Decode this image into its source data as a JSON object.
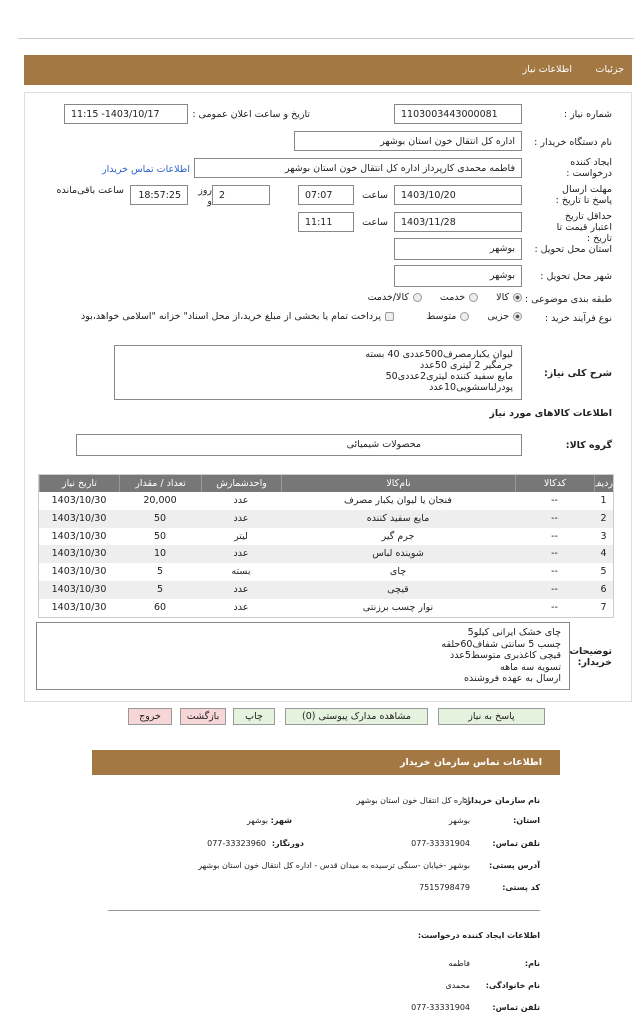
{
  "header": {
    "tabs": [
      "جزئیات",
      "اطلاعات نیاز"
    ]
  },
  "need": {
    "number_label": "شماره نیاز :",
    "number": "1103003443000081",
    "announce_label": "تاریخ و ساعت اعلان عمومی :",
    "announce": "1403/10/17- 11:15",
    "buyer_label": "نام دستگاه خریدار :",
    "buyer": "اداره کل انتقال خون استان بوشهر",
    "creator_label": "ایجاد کننده درخواست :",
    "creator": "فاطمه محمدی کارپرداز اداره کل انتقال خون استان بوشهر",
    "contact_link": "اطلاعات تماس خریدار",
    "deadline_label": "مهلت ارسال پاسخ تا تاریخ :",
    "deadline_date": "1403/10/20",
    "time_label": "ساعت",
    "deadline_time": "07:07",
    "days": "2",
    "days_label": "روز و",
    "remaining": "18:57:25",
    "remaining_label": "ساعت باقی‌مانده",
    "validity_label": "حداقل تاریخ اعتبار قیمت تا تاریخ :",
    "validity_date": "1403/11/28",
    "validity_time": "11:11",
    "province_label": "استان محل تحویل :",
    "province": "بوشهر",
    "city_label": "شهر محل تحویل :",
    "city": "بوشهر",
    "category_label": "طبقه بندی موضوعی :",
    "category_options": [
      "کالا",
      "خدمت",
      "کالا/خدمت"
    ],
    "category_selected": 0,
    "process_label": "نوع فرآیند خرید :",
    "process_options": [
      "جزیی",
      "متوسط"
    ],
    "process_selected": 0,
    "treasury_note": "پرداخت تمام یا بخشی از مبلغ خرید،از محل اسناد\" خزانه \"اسلامی خواهد،بود"
  },
  "description": {
    "label": "شرح کلی نیاز:",
    "lines": [
      "لیوان  یکبارمصرف500عددی 40 بسته",
      "جرمگیر 2  لیتری 50عدد",
      "مایع سفید کننده لیتری2عددی50",
      "پودرلباسشویی10عدد"
    ]
  },
  "items": {
    "title": "اطلاعات کالاهای مورد نیاز",
    "group_label": "گروه کالا:",
    "group": "محصولات شیمیائی"
  },
  "table": {
    "headers": [
      "ردیف",
      "کدکالا",
      "نام‌کالا",
      "واحدشمارش",
      "تعداد / مقدار",
      "تاریخ نیاز"
    ],
    "rows": [
      [
        "1",
        "--",
        "فنجان یا لیوان یکبار مصرف",
        "عدد",
        "20,000",
        "1403/10/30"
      ],
      [
        "2",
        "--",
        "مایع سفید کننده",
        "عدد",
        "50",
        "1403/10/30"
      ],
      [
        "3",
        "--",
        "جرم گیر",
        "لیتر",
        "50",
        "1403/10/30"
      ],
      [
        "4",
        "--",
        "شوینده لباس",
        "عدد",
        "10",
        "1403/10/30"
      ],
      [
        "5",
        "--",
        "چای",
        "بسته",
        "5",
        "1403/10/30"
      ],
      [
        "6",
        "--",
        "قیچی",
        "عدد",
        "5",
        "1403/10/30"
      ],
      [
        "7",
        "--",
        "نوار چسب برزنتی",
        "عدد",
        "60",
        "1403/10/30"
      ]
    ]
  },
  "notes": {
    "label": "توضیحات خریدار:",
    "lines": [
      "چای خشک ایرانی کیلو5",
      "چسب 5 سانتی شفاف60حلقه",
      "قیچی کاغذبری متوسط5عدد",
      "تسویه سه ماهه",
      "ارسال به عهده فروشنده"
    ]
  },
  "buttons": [
    "پاسخ به نیاز",
    "مشاهده مدارک پیوستی (0)",
    "چاپ",
    "بازگشت",
    "خروج"
  ],
  "contact": {
    "title": "اطلاعات تماس سازمان خریدار",
    "org_label": "نام سازمان خریدار:",
    "org": "اداره کل انتقال خون استان بوشهر",
    "province_label": "استان:",
    "province": "بوشهر",
    "city_label": "شهر:",
    "city": "بوشهر",
    "phone_label": "تلفن تماس:",
    "phone": "077-33331904",
    "fax_label": "دورنگار:",
    "fax": "077-33323960",
    "address_label": "آدرس پستی:",
    "address": "بوشهر -خیابان -سنگی ترسیده  به میدان قدس - اداره کل انتقال خون استان بوشهر",
    "postal_label": "کد پستی:",
    "postal": "7515798479",
    "creator_title": "اطلاعات ایجاد کننده درخواست:",
    "name_label": "نام:",
    "name": "فاطمه",
    "family_label": "نام خانوادگی:",
    "family": "محمدی",
    "creator_phone_label": "تلفن تماس:",
    "creator_phone": "077-33331904"
  }
}
